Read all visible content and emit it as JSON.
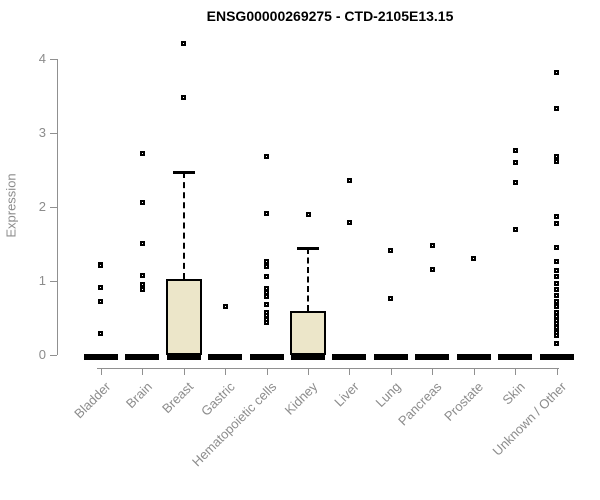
{
  "chart_data": {
    "type": "boxplot",
    "title": "ENSG00000269275 - CTD-2105E13.15",
    "ylabel": "Expression",
    "xlabel": "",
    "yticks": [
      0,
      1,
      2,
      3,
      4
    ],
    "ylim": [
      0,
      4.3
    ],
    "grid": false,
    "legend": "none",
    "colors": {
      "box_fill": "#ece6c9",
      "box_border": "#000000",
      "median": "#000000",
      "axis": "#909090",
      "tick_text": "#8c8c8c",
      "title_text": "#000000"
    },
    "categories": [
      "Bladder",
      "Brain",
      "Breast",
      "Gastric",
      "Hematopoietic cells",
      "Kidney",
      "Liver",
      "Lung",
      "Pancreas",
      "Prostate",
      "Skin",
      "Unknown / Other"
    ],
    "series": [
      {
        "category": "Bladder",
        "median": 0,
        "points": [
          1.23,
          1.21,
          0.92,
          0.73,
          0.29
        ]
      },
      {
        "category": "Brain",
        "median": 0,
        "points": [
          2.72,
          2.06,
          1.51,
          1.07,
          0.96,
          0.88
        ]
      },
      {
        "category": "Breast",
        "median": 0,
        "q1": 0,
        "q3": 1.03,
        "whisker_high": 2.48,
        "points": [
          4.21,
          3.48
        ]
      },
      {
        "category": "Gastric",
        "median": 0,
        "points": [
          0.66
        ]
      },
      {
        "category": "Hematopoietic cells",
        "median": 0,
        "points": [
          2.69,
          1.92,
          1.26,
          1.2,
          1.06,
          0.9,
          0.85,
          0.79,
          0.68,
          0.58,
          0.53,
          0.48,
          0.44
        ]
      },
      {
        "category": "Kidney",
        "median": 0,
        "q1": 0,
        "q3": 0.59,
        "whisker_high": 1.45,
        "points": [
          1.9
        ]
      },
      {
        "category": "Liver",
        "median": 0,
        "points": [
          2.36,
          1.79
        ]
      },
      {
        "category": "Lung",
        "median": 0,
        "points": [
          1.42,
          0.77
        ]
      },
      {
        "category": "Pancreas",
        "median": 0,
        "points": [
          1.48,
          1.16
        ]
      },
      {
        "category": "Prostate",
        "median": 0,
        "points": [
          1.31
        ]
      },
      {
        "category": "Skin",
        "median": 0,
        "points": [
          2.77,
          2.6,
          2.34,
          1.7
        ]
      },
      {
        "category": "Unknown / Other",
        "median": 0,
        "points": [
          3.82,
          3.33,
          2.68,
          2.62,
          1.87,
          1.78,
          1.45,
          1.26,
          1.15,
          1.06,
          0.97,
          0.88,
          0.8,
          0.72,
          0.65,
          0.58,
          0.52,
          0.47,
          0.42,
          0.37,
          0.31,
          0.26,
          0.16
        ]
      }
    ]
  }
}
